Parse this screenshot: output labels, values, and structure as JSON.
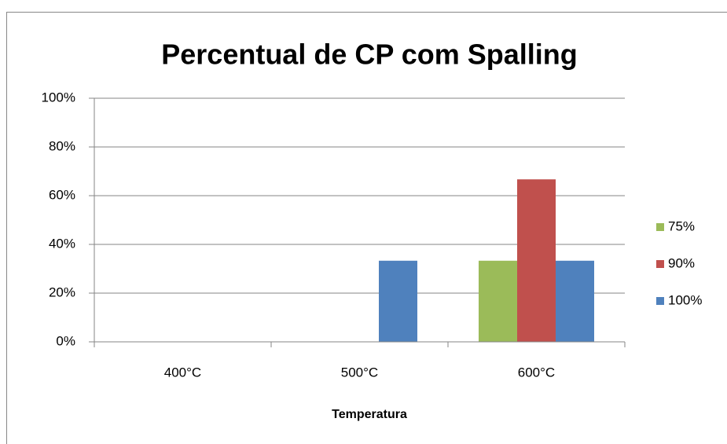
{
  "chart_data": {
    "type": "bar",
    "title": "Percentual de CP com Spalling",
    "x_label": "Temperatura",
    "categories": [
      "400°C",
      "500°C",
      "600°C"
    ],
    "series": [
      {
        "name": "75%",
        "color": "#9bbb59",
        "values": [
          0,
          0,
          33.3
        ]
      },
      {
        "name": "90%",
        "color": "#c0504d",
        "values": [
          0,
          0,
          66.7
        ]
      },
      {
        "name": "100%",
        "color": "#4f81bd",
        "values": [
          0,
          33.3,
          33.3
        ]
      }
    ],
    "ylim": [
      0,
      100
    ],
    "yticks": [
      {
        "value": 0,
        "label": "0%"
      },
      {
        "value": 20,
        "label": "20%"
      },
      {
        "value": 40,
        "label": "40%"
      },
      {
        "value": 60,
        "label": "60%"
      },
      {
        "value": 80,
        "label": "80%"
      },
      {
        "value": 100,
        "label": "100%"
      }
    ],
    "grid": true,
    "legend": "right"
  }
}
